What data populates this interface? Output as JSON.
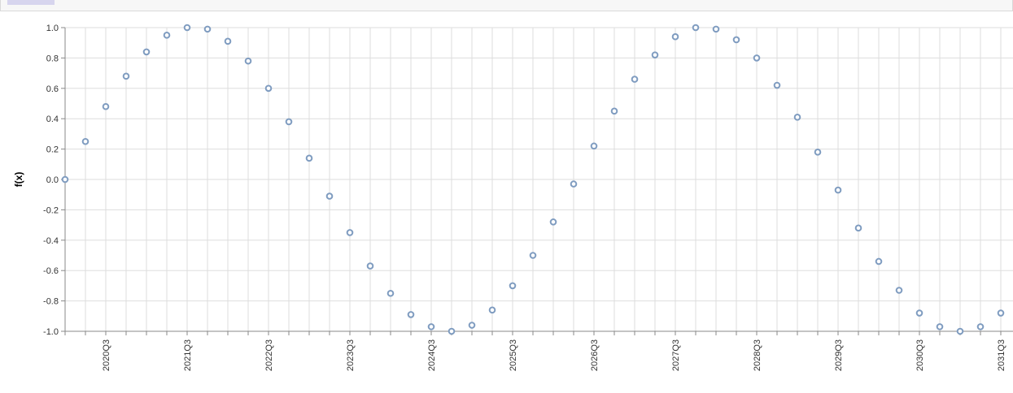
{
  "chart_data": {
    "type": "scatter",
    "ylabel": "f(x)",
    "xlabel": "",
    "ylim": [
      -1.0,
      1.0
    ],
    "y_ticks": [
      "1.0",
      "0.8",
      "0.6",
      "0.4",
      "0.2",
      "0.0",
      "-0.2",
      "-0.4",
      "-0.6",
      "-0.8",
      "-1.0"
    ],
    "x_tick_labels": [
      "2020Q3",
      "2021Q3",
      "2022Q3",
      "2023Q3",
      "2024Q3",
      "2025Q3",
      "2026Q3",
      "2027Q3",
      "2028Q3",
      "2029Q3",
      "2030Q3",
      "2031Q3"
    ],
    "x": [
      "2020Q1",
      "2020Q2",
      "2020Q3",
      "2020Q4",
      "2021Q1",
      "2021Q2",
      "2021Q3",
      "2021Q4",
      "2022Q1",
      "2022Q2",
      "2022Q3",
      "2022Q4",
      "2023Q1",
      "2023Q2",
      "2023Q3",
      "2023Q4",
      "2024Q1",
      "2024Q2",
      "2024Q3",
      "2024Q4",
      "2025Q1",
      "2025Q2",
      "2025Q3",
      "2025Q4",
      "2026Q1",
      "2026Q2",
      "2026Q3",
      "2026Q4",
      "2027Q1",
      "2027Q2",
      "2027Q3",
      "2027Q4",
      "2028Q1",
      "2028Q2",
      "2028Q3",
      "2028Q4",
      "2029Q1",
      "2029Q2",
      "2029Q3",
      "2029Q4",
      "2030Q1",
      "2030Q2",
      "2030Q3",
      "2030Q4",
      "2031Q1",
      "2031Q2",
      "2031Q3"
    ],
    "y": [
      0.0,
      0.25,
      0.48,
      0.68,
      0.84,
      0.95,
      1.0,
      0.99,
      0.91,
      0.78,
      0.6,
      0.38,
      0.14,
      -0.11,
      -0.35,
      -0.57,
      -0.75,
      -0.89,
      -0.97,
      -1.0,
      -0.96,
      -0.86,
      -0.7,
      -0.5,
      -0.28,
      -0.03,
      0.22,
      0.45,
      0.66,
      0.82,
      0.94,
      1.0,
      0.99,
      0.92,
      0.8,
      0.62,
      0.41,
      0.18,
      -0.07,
      -0.32,
      -0.54,
      -0.73,
      -0.88,
      -0.97,
      -1.0,
      -0.97,
      -0.88
    ],
    "grid": true,
    "point_color": "#7f9cc0",
    "grid_color": "#dddddd"
  }
}
